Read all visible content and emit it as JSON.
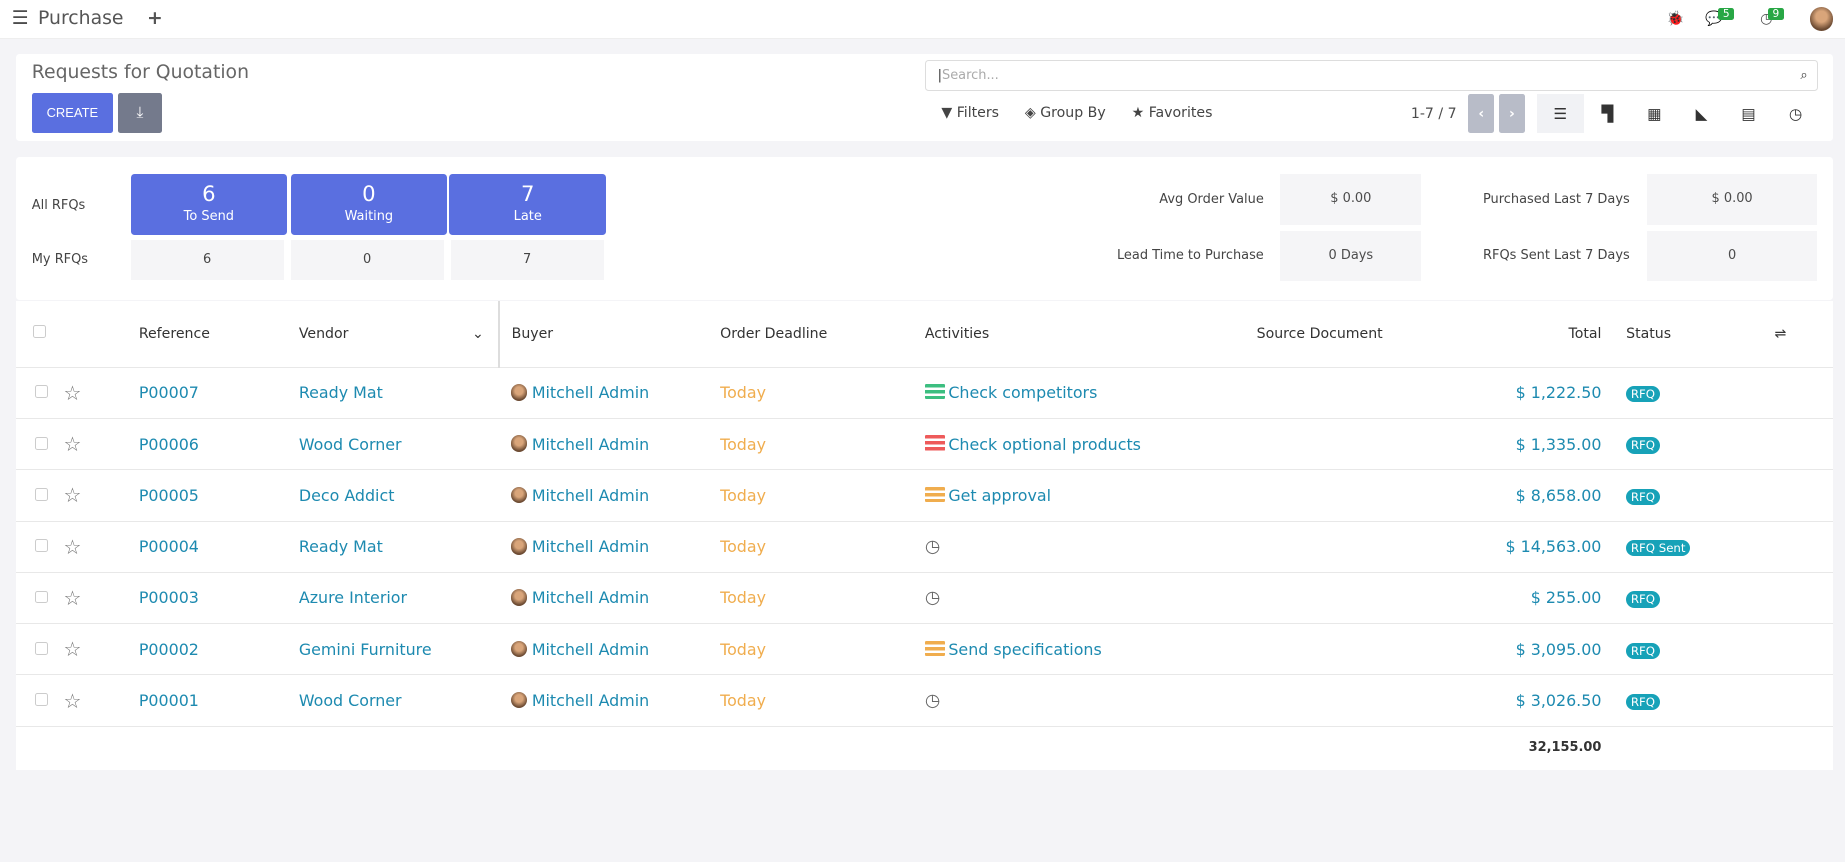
{
  "topbar": {
    "app": "Purchase",
    "chat_count": "5",
    "activity_count": "9"
  },
  "control": {
    "title": "Requests for Quotation",
    "create": "CREATE",
    "search_placeholder": "Search...",
    "filters": "Filters",
    "group_by": "Group By",
    "favorites": "Favorites",
    "pager": "1-7 / 7"
  },
  "dashboard": {
    "all_rfqs": "All RFQs",
    "my_rfqs": "My RFQs",
    "tiles": [
      {
        "n": "6",
        "t": "To Send",
        "mine": "6"
      },
      {
        "n": "0",
        "t": "Waiting",
        "mine": "0"
      },
      {
        "n": "7",
        "t": "Late",
        "mine": "7"
      }
    ],
    "avg_order_label": "Avg Order Value",
    "avg_order": "$ 0.00",
    "lead_label": "Lead Time to Purchase",
    "lead": "0 Days",
    "purchased_label": "Purchased Last 7 Days",
    "purchased": "$ 0.00",
    "sent_label": "RFQs Sent Last 7 Days",
    "sent": "0"
  },
  "table": {
    "headers": {
      "reference": "Reference",
      "vendor": "Vendor",
      "buyer": "Buyer",
      "deadline": "Order Deadline",
      "activities": "Activities",
      "source": "Source Document",
      "total": "Total",
      "status": "Status"
    },
    "rows": [
      {
        "ref": "P00007",
        "vendor": "Ready Mat",
        "buyer": "Mitchell Admin",
        "deadline": "Today",
        "activity": "Check competitors",
        "activity_color": "#3cbe80",
        "total": "$ 1,222.50",
        "status": "RFQ"
      },
      {
        "ref": "P00006",
        "vendor": "Wood Corner",
        "buyer": "Mitchell Admin",
        "deadline": "Today",
        "activity": "Check optional products",
        "activity_color": "#ee5a5a",
        "total": "$ 1,335.00",
        "status": "RFQ"
      },
      {
        "ref": "P00005",
        "vendor": "Deco Addict",
        "buyer": "Mitchell Admin",
        "deadline": "Today",
        "activity": "Get approval",
        "activity_color": "#f0ad4e",
        "total": "$ 8,658.00",
        "status": "RFQ"
      },
      {
        "ref": "P00004",
        "vendor": "Ready Mat",
        "buyer": "Mitchell Admin",
        "deadline": "Today",
        "activity": "",
        "activity_color": "",
        "total": "$ 14,563.00",
        "status": "RFQ Sent"
      },
      {
        "ref": "P00003",
        "vendor": "Azure Interior",
        "buyer": "Mitchell Admin",
        "deadline": "Today",
        "activity": "",
        "activity_color": "",
        "total": "$ 255.00",
        "status": "RFQ"
      },
      {
        "ref": "P00002",
        "vendor": "Gemini Furniture",
        "buyer": "Mitchell Admin",
        "deadline": "Today",
        "activity": "Send specifications",
        "activity_color": "#f0ad4e",
        "total": "$ 3,095.00",
        "status": "RFQ"
      },
      {
        "ref": "P00001",
        "vendor": "Wood Corner",
        "buyer": "Mitchell Admin",
        "deadline": "Today",
        "activity": "",
        "activity_color": "",
        "total": "$ 3,026.50",
        "status": "RFQ"
      }
    ],
    "sum": "32,155.00"
  }
}
